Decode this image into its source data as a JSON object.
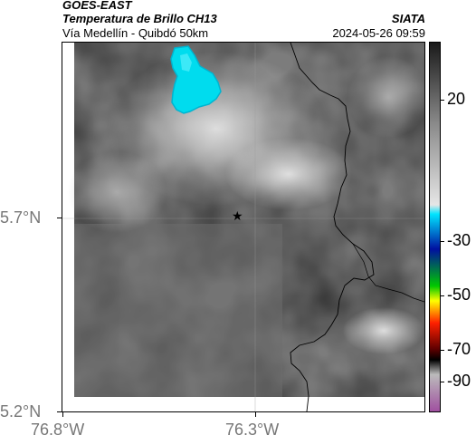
{
  "header": {
    "satellite": "GOES-EAST",
    "product": "Temperatura de Brillo CH13",
    "region": "Vía Medellín - Quibdó 50km",
    "agency": "SIATA",
    "datetime": "2024-05-26 09:59"
  },
  "map": {
    "y_axis_labels": [
      "5.7°N",
      "5.2°N"
    ],
    "x_axis_labels": [
      "76.8°W",
      "76.3°W"
    ],
    "marker_icon": "star-icon",
    "colors": {
      "gridline": "#9a9a9a",
      "border_line": "#000000",
      "cold_cloud": "#00d8e8"
    }
  },
  "colorbar": {
    "tick_labels": [
      "20",
      "-30",
      "-50",
      "-70",
      "-90"
    ],
    "color_stops": [
      "#1a1a1a",
      "#8a8a8a",
      "#e6e6e6",
      "#00e5ff",
      "#0010a0",
      "#00c800",
      "#ffff00",
      "#ff2000",
      "#600000",
      "#000000",
      "#bbbbbb",
      "#a050a0"
    ]
  }
}
